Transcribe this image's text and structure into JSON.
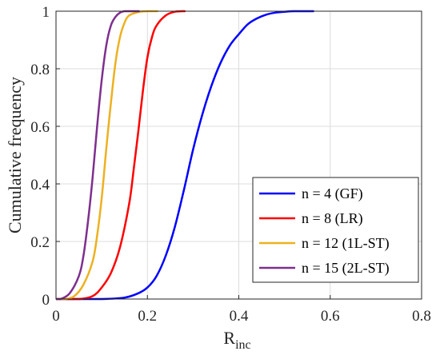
{
  "chart_data": {
    "type": "line",
    "xlabel": "R",
    "xlabel_sub": "inc",
    "ylabel": "Cumulative frequency",
    "xlim": [
      0,
      0.8
    ],
    "ylim": [
      0,
      1
    ],
    "xticks": [
      0,
      0.2,
      0.4,
      0.6,
      0.8
    ],
    "xtick_labels": [
      "0",
      "0.2",
      "0.4",
      "0.6",
      "0.8"
    ],
    "yticks": [
      0,
      0.2,
      0.4,
      0.6,
      0.8,
      1
    ],
    "ytick_labels": [
      "0",
      "0.2",
      "0.4",
      "0.6",
      "0.8",
      "1"
    ],
    "grid": true,
    "legend_position": "bottom-right",
    "series": [
      {
        "name": "n = 4 (GF)",
        "color": "#0000ff",
        "x": [
          0.1,
          0.15,
          0.18,
          0.2,
          0.22,
          0.24,
          0.26,
          0.28,
          0.3,
          0.32,
          0.34,
          0.36,
          0.38,
          0.4,
          0.42,
          0.44,
          0.46,
          0.48,
          0.5,
          0.52,
          0.56
        ],
        "y": [
          0,
          0.005,
          0.02,
          0.04,
          0.08,
          0.15,
          0.25,
          0.38,
          0.52,
          0.64,
          0.74,
          0.82,
          0.88,
          0.92,
          0.955,
          0.975,
          0.988,
          0.995,
          0.998,
          1,
          1
        ]
      },
      {
        "name": "n = 8 (LR)",
        "color": "#ff0000",
        "x": [
          0.05,
          0.08,
          0.1,
          0.12,
          0.14,
          0.16,
          0.17,
          0.18,
          0.19,
          0.2,
          0.21,
          0.22,
          0.24,
          0.26,
          0.28
        ],
        "y": [
          0,
          0.01,
          0.04,
          0.09,
          0.18,
          0.33,
          0.45,
          0.58,
          0.72,
          0.84,
          0.91,
          0.95,
          0.985,
          0.998,
          1
        ]
      },
      {
        "name": "n = 12 (1L-ST)",
        "color": "#edb120",
        "x": [
          0.02,
          0.04,
          0.06,
          0.08,
          0.09,
          0.1,
          0.11,
          0.12,
          0.13,
          0.14,
          0.15,
          0.16,
          0.18,
          0.2,
          0.22
        ],
        "y": [
          0,
          0.01,
          0.05,
          0.13,
          0.22,
          0.35,
          0.52,
          0.68,
          0.82,
          0.91,
          0.96,
          0.985,
          0.997,
          1,
          1
        ]
      },
      {
        "name": "n = 15 (2L-ST)",
        "color": "#7e2f8e",
        "x": [
          0.01,
          0.03,
          0.05,
          0.06,
          0.07,
          0.08,
          0.09,
          0.1,
          0.11,
          0.12,
          0.13,
          0.14,
          0.15,
          0.16,
          0.18
        ],
        "y": [
          0,
          0.02,
          0.08,
          0.15,
          0.27,
          0.42,
          0.6,
          0.76,
          0.88,
          0.95,
          0.98,
          0.995,
          1,
          1,
          1
        ]
      }
    ]
  }
}
